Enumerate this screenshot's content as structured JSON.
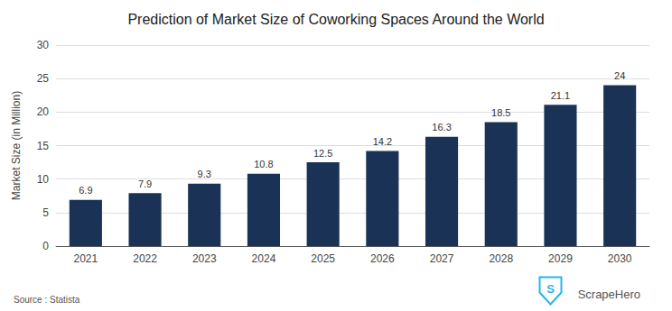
{
  "chart_data": {
    "type": "bar",
    "title": "Prediction of Market Size of Coworking Spaces Around the World",
    "ylabel": "Market Size (in Million)",
    "categories": [
      "2021",
      "2022",
      "2023",
      "2024",
      "2025",
      "2026",
      "2027",
      "2028",
      "2029",
      "2030"
    ],
    "values": [
      6.9,
      7.9,
      9.3,
      10.8,
      12.5,
      14.2,
      16.3,
      18.5,
      21.1,
      24
    ],
    "color": "#1a3255",
    "ylim": [
      0,
      30
    ],
    "yticks": [
      0,
      5,
      10,
      15,
      20,
      25,
      30
    ],
    "grid": true,
    "data_labels": true,
    "annotations": [
      "Source : Statista",
      "ScrapeHero",
      "S"
    ]
  }
}
